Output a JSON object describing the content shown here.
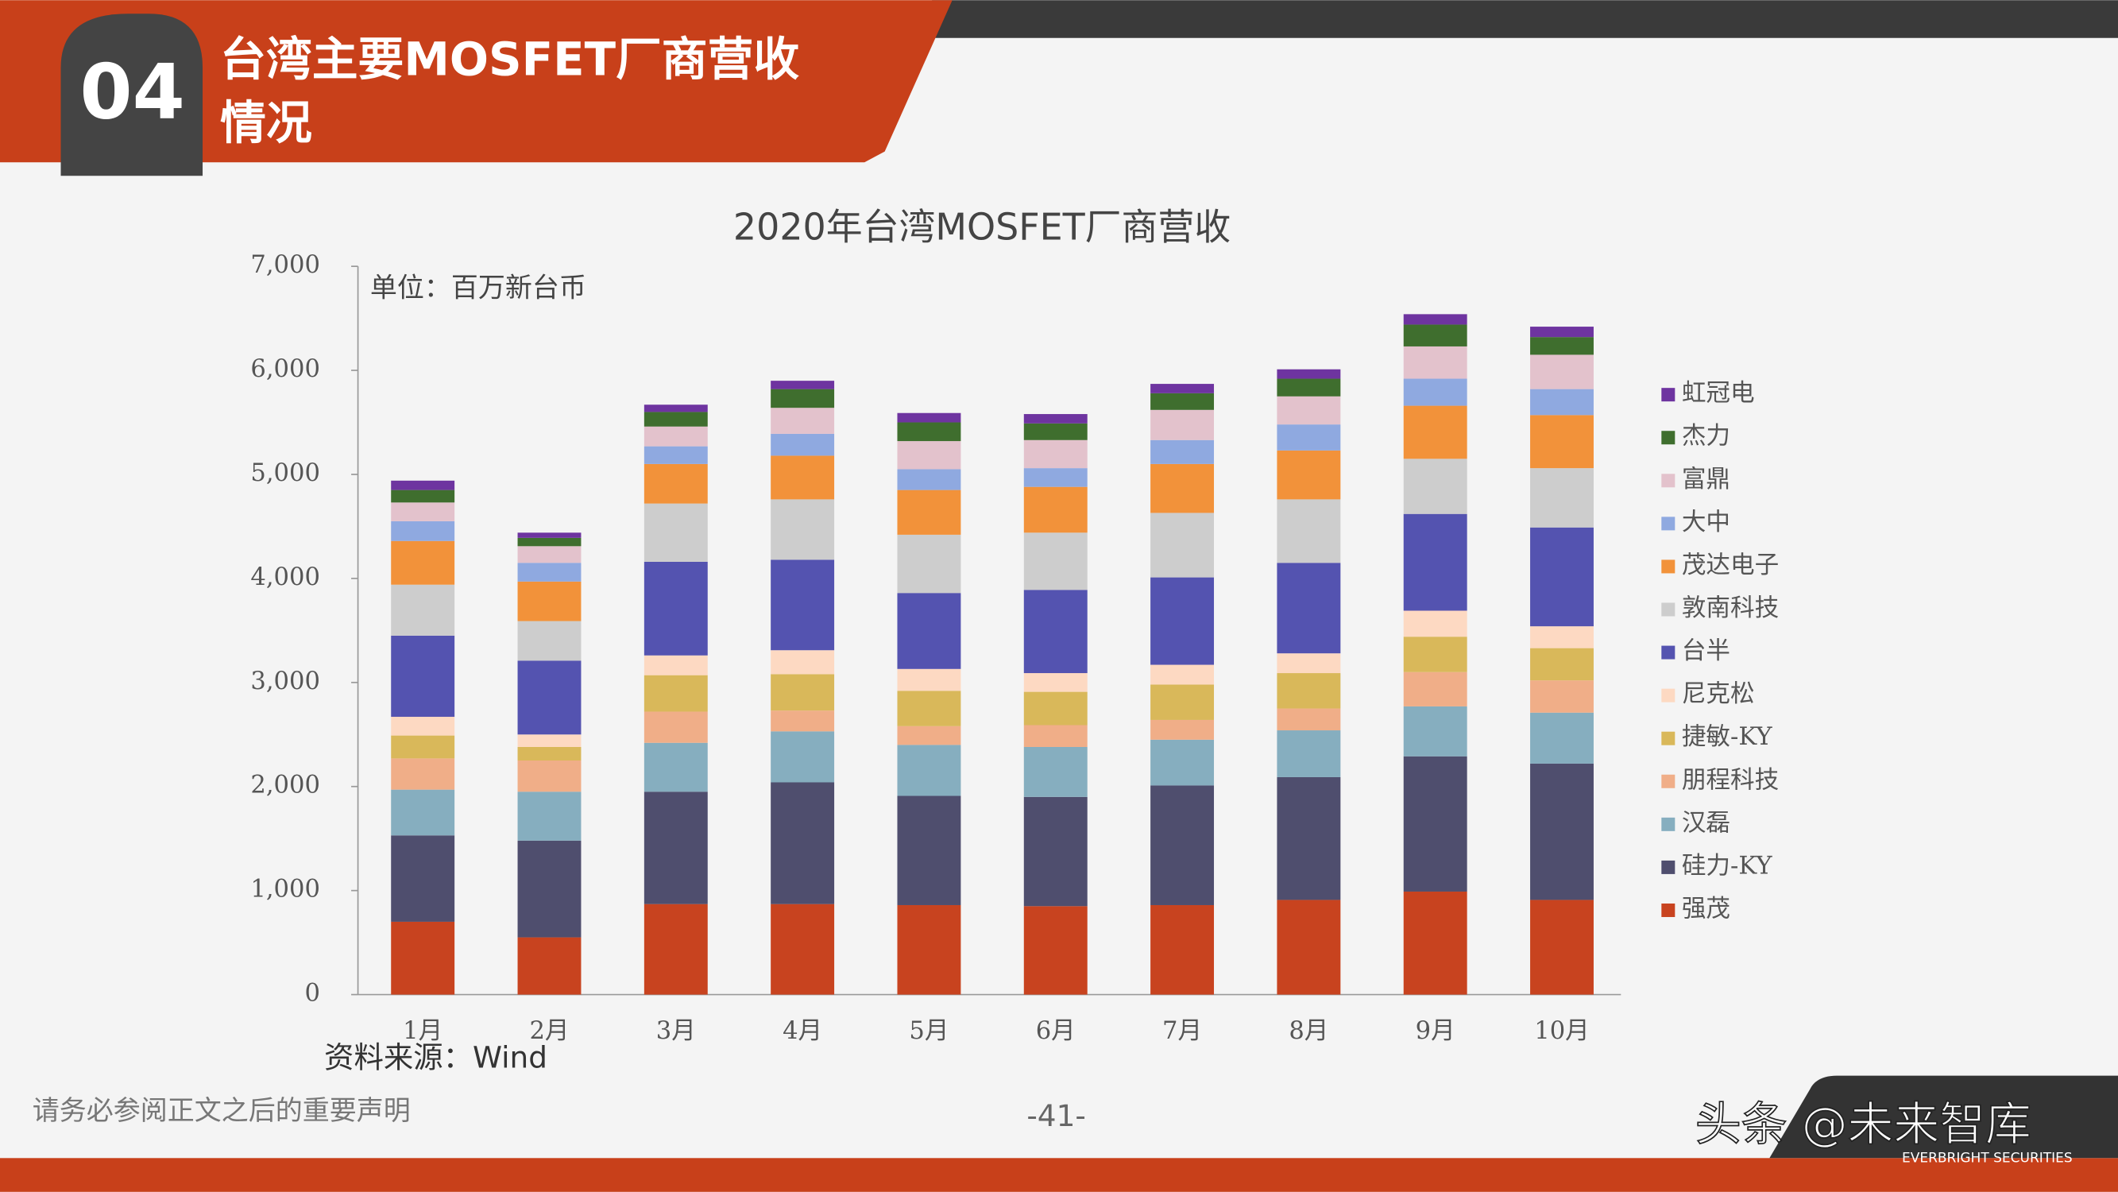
{
  "header": {
    "number": "04",
    "title_lines": [
      "台湾主要MOSFET厂商营收",
      "情况"
    ]
  },
  "chart_data": {
    "type": "stacked_bar",
    "title": "2020年台湾MOSFET厂商营收",
    "unit_note": "单位：百万新台币",
    "source": "资料来源：Wind",
    "categories": [
      "1月",
      "2月",
      "3月",
      "4月",
      "5月",
      "6月",
      "7月",
      "8月",
      "9月",
      "10月"
    ],
    "ylim": [
      0,
      7000
    ],
    "yticks": [
      0,
      {
        "value": 1000,
        "label": "1,000"
      },
      {
        "value": 2000,
        "label": "2,000"
      },
      {
        "value": 3000,
        "label": "3,000"
      },
      {
        "value": 4000,
        "label": "4,000"
      },
      {
        "value": 5000,
        "label": "5,000"
      },
      {
        "value": 6000,
        "label": "6,000"
      },
      {
        "value": 7000,
        "label": "7,000"
      }
    ],
    "grid": false,
    "legend": "right",
    "series": [
      {
        "name": "强茂",
        "color": "#c8431f",
        "values": [
          700,
          550,
          870,
          870,
          860,
          850,
          860,
          910,
          990,
          910
        ]
      },
      {
        "name": "硅力-KY",
        "color": "#4f4e6e",
        "values": [
          830,
          930,
          1080,
          1170,
          1050,
          1050,
          1150,
          1180,
          1300,
          1310
        ]
      },
      {
        "name": "汉磊",
        "color": "#86aebf",
        "values": [
          440,
          470,
          470,
          490,
          490,
          480,
          440,
          450,
          480,
          490
        ]
      },
      {
        "name": "朋程科技",
        "color": "#f0ae88",
        "values": [
          300,
          300,
          300,
          200,
          180,
          210,
          190,
          210,
          330,
          310
        ]
      },
      {
        "name": "捷敏-KY",
        "color": "#d9b85a",
        "values": [
          220,
          130,
          350,
          350,
          340,
          320,
          340,
          340,
          340,
          310
        ]
      },
      {
        "name": "尼克松",
        "color": "#fdd9c2",
        "values": [
          180,
          120,
          190,
          230,
          210,
          180,
          190,
          190,
          250,
          210
        ]
      },
      {
        "name": "台半",
        "color": "#5453b0",
        "values": [
          780,
          710,
          900,
          870,
          730,
          800,
          840,
          870,
          930,
          950
        ]
      },
      {
        "name": "敦南科技",
        "color": "#cdcdcd",
        "values": [
          490,
          380,
          560,
          580,
          560,
          550,
          620,
          610,
          530,
          570
        ]
      },
      {
        "name": "茂达电子",
        "color": "#f2923a",
        "values": [
          420,
          380,
          380,
          420,
          430,
          440,
          470,
          470,
          510,
          510
        ]
      },
      {
        "name": "大中",
        "color": "#8fa9e0",
        "values": [
          190,
          180,
          170,
          210,
          200,
          180,
          230,
          250,
          260,
          250
        ]
      },
      {
        "name": "富鼎",
        "color": "#e3c2cc",
        "values": [
          180,
          160,
          190,
          250,
          270,
          270,
          290,
          270,
          310,
          330
        ]
      },
      {
        "name": "杰力",
        "color": "#3f6e2e",
        "values": [
          120,
          80,
          140,
          180,
          180,
          160,
          160,
          170,
          210,
          170
        ]
      },
      {
        "name": "虹冠电",
        "color": "#6e34a0",
        "values": [
          90,
          50,
          70,
          80,
          90,
          90,
          90,
          90,
          100,
          100
        ]
      }
    ]
  },
  "footer": {
    "disclaimer": "请务必参阅正文之后的重要声明",
    "page": "-41-",
    "watermark": "头条 @未来智库",
    "brand": "EVERBRIGHT SECURITIES"
  }
}
